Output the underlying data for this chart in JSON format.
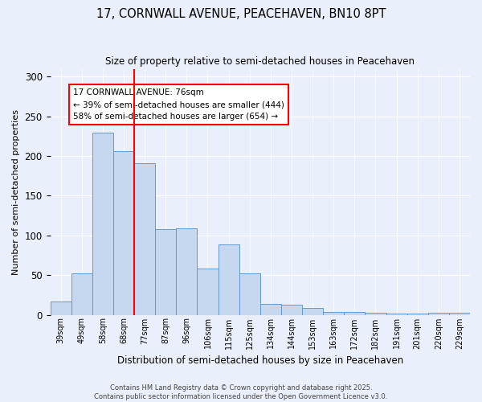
{
  "title1": "17, CORNWALL AVENUE, PEACEHAVEN, BN10 8PT",
  "title2": "Size of property relative to semi-detached houses in Peacehaven",
  "xlabel": "Distribution of semi-detached houses by size in Peacehaven",
  "ylabel": "Number of semi-detached properties",
  "categories": [
    "39sqm",
    "49sqm",
    "58sqm",
    "68sqm",
    "77sqm",
    "87sqm",
    "96sqm",
    "106sqm",
    "115sqm",
    "125sqm",
    "134sqm",
    "144sqm",
    "153sqm",
    "163sqm",
    "172sqm",
    "182sqm",
    "191sqm",
    "201sqm",
    "220sqm",
    "229sqm"
  ],
  "values": [
    17,
    52,
    230,
    206,
    191,
    108,
    109,
    58,
    89,
    52,
    14,
    13,
    9,
    4,
    4,
    3,
    2,
    2,
    3,
    3
  ],
  "bar_color": "#c5d8f0",
  "bar_edge_color": "#6699cc",
  "vline_index": 3.5,
  "vline_color": "red",
  "annotation_title": "17 CORNWALL AVENUE: 76sqm",
  "annotation_line1": "← 39% of semi-detached houses are smaller (444)",
  "annotation_line2": "58% of semi-detached houses are larger (654) →",
  "annotation_box_color": "white",
  "annotation_border_color": "red",
  "ylim": [
    0,
    310
  ],
  "yticks": [
    0,
    50,
    100,
    150,
    200,
    250,
    300
  ],
  "background_color": "#eaf0fb",
  "footer1": "Contains HM Land Registry data © Crown copyright and database right 2025.",
  "footer2": "Contains public sector information licensed under the Open Government Licence v3.0."
}
